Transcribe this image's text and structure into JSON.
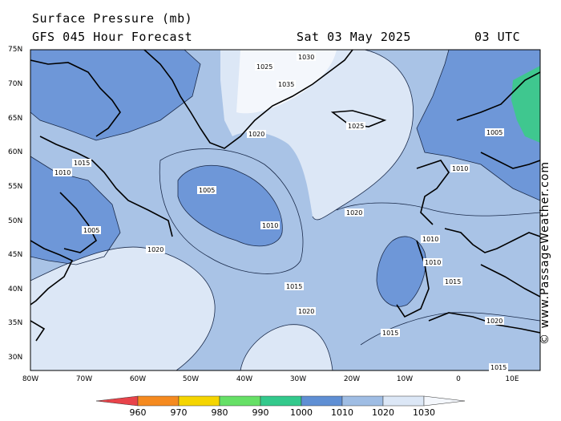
{
  "header": {
    "title": "Surface Pressure (mb)",
    "model": "GFS 045 Hour Forecast",
    "date": "Sat 03 May 2025",
    "time": "03 UTC"
  },
  "credit": "© www.PassageWeather.com",
  "lat_labels": [
    "75N",
    "70N",
    "65N",
    "60N",
    "55N",
    "50N",
    "45N",
    "40N",
    "35N",
    "30N"
  ],
  "lon_labels": [
    "80W",
    "70W",
    "60W",
    "50W",
    "40W",
    "30W",
    "20W",
    "10W",
    "0",
    "10E"
  ],
  "colorbar": {
    "labels": [
      "960",
      "970",
      "980",
      "990",
      "1000",
      "1010",
      "1020",
      "1030"
    ],
    "colors": [
      "#e8434a",
      "#f58a1f",
      "#f5d500",
      "#66e066",
      "#33c98c",
      "#5f8fd4",
      "#9fbde4",
      "#dce7f6"
    ]
  },
  "isobar_labels": [
    "1005",
    "1010",
    "1015",
    "1020",
    "1025",
    "1030",
    "1035"
  ],
  "map_labels": {
    "low_center": "1005",
    "ring_1010": "1010",
    "azores_1010": "1010",
    "atl_1020": "1020",
    "atl_1015": "1015",
    "atl_1020b": "1020",
    "greenland_1025": "1025",
    "greenland_1030": "1030",
    "greenland_1035": "1035",
    "iceland_1025": "1025",
    "iceland_1020": "1020",
    "scandi_1005": "1005",
    "north_sea_1010": "1010",
    "labrador_1010": "1010",
    "labrador_1005": "1005",
    "nf_1015": "1015",
    "nf_1020": "1020",
    "iberia_1010": "1010",
    "med_1015": "1015",
    "med_1020": "1020",
    "canary_1015": "1015",
    "south_1015": "1015"
  }
}
